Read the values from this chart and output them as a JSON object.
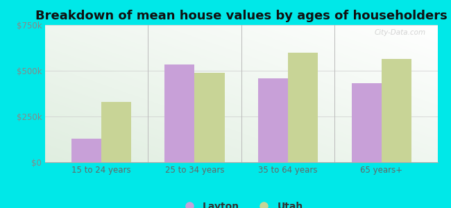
{
  "title": "Breakdown of mean house values by ages of householders",
  "categories": [
    "15 to 24 years",
    "25 to 34 years",
    "35 to 64 years",
    "65 years+"
  ],
  "layton_values": [
    130000,
    535000,
    460000,
    430000
  ],
  "utah_values": [
    330000,
    490000,
    600000,
    565000
  ],
  "layton_color": "#c8a0d8",
  "utah_color": "#c8d496",
  "background_color": "#00e8e8",
  "ylim": [
    0,
    750000
  ],
  "yticks": [
    0,
    250000,
    500000,
    750000
  ],
  "ytick_labels": [
    "$0",
    "$250k",
    "$500k",
    "$750k"
  ],
  "bar_width": 0.32,
  "legend_layton": "Layton",
  "legend_utah": "Utah",
  "title_fontsize": 13,
  "tick_fontsize": 8.5,
  "legend_fontsize": 10,
  "watermark": "City-Data.com"
}
